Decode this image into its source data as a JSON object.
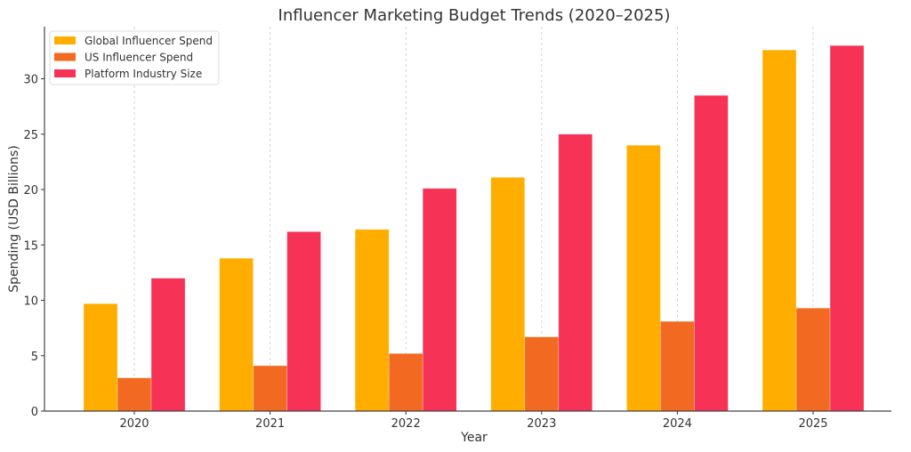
{
  "chart_data": {
    "type": "bar",
    "title": "Influencer Marketing Budget Trends (2020–2025)",
    "xlabel": "Year",
    "ylabel": "Spending (USD Billions)",
    "categories": [
      "2020",
      "2021",
      "2022",
      "2023",
      "2024",
      "2025"
    ],
    "series": [
      {
        "name": "Global Influencer Spend",
        "color": "#FFAE00",
        "values": [
          9.7,
          13.8,
          16.4,
          21.1,
          24.0,
          32.6
        ]
      },
      {
        "name": "US Influencer Spend",
        "color": "#F26A21",
        "values": [
          3.0,
          4.1,
          5.2,
          6.7,
          8.1,
          9.3
        ]
      },
      {
        "name": "Platform Industry Size",
        "color": "#F63256",
        "values": [
          12.0,
          16.2,
          20.1,
          25.0,
          28.5,
          33.0
        ]
      }
    ],
    "ylim": [
      0,
      34.7
    ],
    "yticks": [
      "0",
      "5",
      "10",
      "15",
      "20",
      "25",
      "30"
    ],
    "grid": "x-dashed",
    "legend": "top-left"
  }
}
